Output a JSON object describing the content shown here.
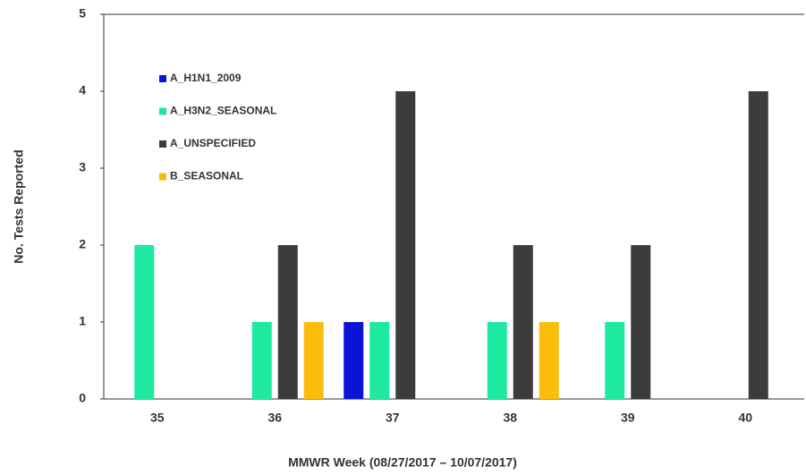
{
  "chart_data": {
    "type": "bar",
    "x_label": "MMWR Week (08/27/2017 – 10/07/2017)",
    "y_label": "No. Tests Reported",
    "categories": [
      "35",
      "36",
      "37",
      "38",
      "39",
      "40"
    ],
    "series": [
      {
        "name": "A_H1N1_2009",
        "color": "#0a14d8",
        "values": [
          0,
          0,
          1,
          0,
          0,
          0
        ]
      },
      {
        "name": "A_H3N2_SEASONAL",
        "color": "#1de9a0",
        "values": [
          2,
          1,
          1,
          1,
          1,
          0
        ]
      },
      {
        "name": "A_UNSPECIFIED",
        "color": "#3c3c3c",
        "values": [
          0,
          2,
          4,
          2,
          2,
          4
        ]
      },
      {
        "name": "B_SEASONAL",
        "color": "#f9bd0a",
        "values": [
          0,
          1,
          0,
          1,
          0,
          0
        ]
      }
    ],
    "ylim": [
      0,
      5
    ],
    "yticks": [
      0,
      1,
      2,
      3,
      4,
      5
    ],
    "grid": false,
    "legend": "upper left"
  }
}
